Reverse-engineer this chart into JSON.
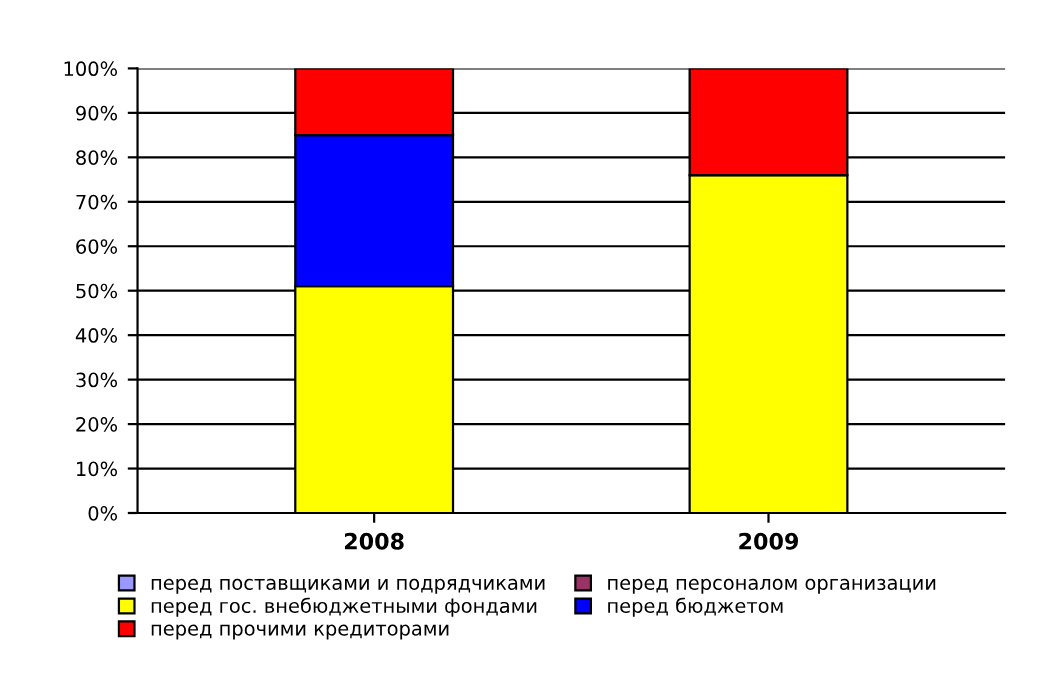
{
  "chart_data": {
    "type": "bar",
    "stacked": true,
    "categories": [
      "2008",
      "2009"
    ],
    "series": [
      {
        "name": "перед поставщиками и подрядчиками",
        "color": "#9999ff",
        "values": [
          0,
          0
        ]
      },
      {
        "name": "перед персоналом организации",
        "color": "#993366",
        "values": [
          0,
          0
        ]
      },
      {
        "name": "перед гос. внебюджетными фондами",
        "color": "#ffff00",
        "values": [
          51,
          76
        ]
      },
      {
        "name": "перед бюджетом",
        "color": "#0000ff",
        "values": [
          34,
          0
        ]
      },
      {
        "name": "перед прочими кредиторами",
        "color": "#ff0000",
        "values": [
          15,
          24
        ]
      }
    ],
    "ylim": [
      0,
      100
    ],
    "yticks": [
      {
        "value": 0,
        "label": "0%"
      },
      {
        "value": 10,
        "label": "10%"
      },
      {
        "value": 20,
        "label": "20%"
      },
      {
        "value": 30,
        "label": "30%"
      },
      {
        "value": 40,
        "label": "40%"
      },
      {
        "value": 50,
        "label": "50%"
      },
      {
        "value": 60,
        "label": "60%"
      },
      {
        "value": 70,
        "label": "70%"
      },
      {
        "value": 80,
        "label": "80%"
      },
      {
        "value": 90,
        "label": "90%"
      },
      {
        "value": 100,
        "label": "100%"
      }
    ],
    "grid": "y",
    "legend": "bottom"
  }
}
